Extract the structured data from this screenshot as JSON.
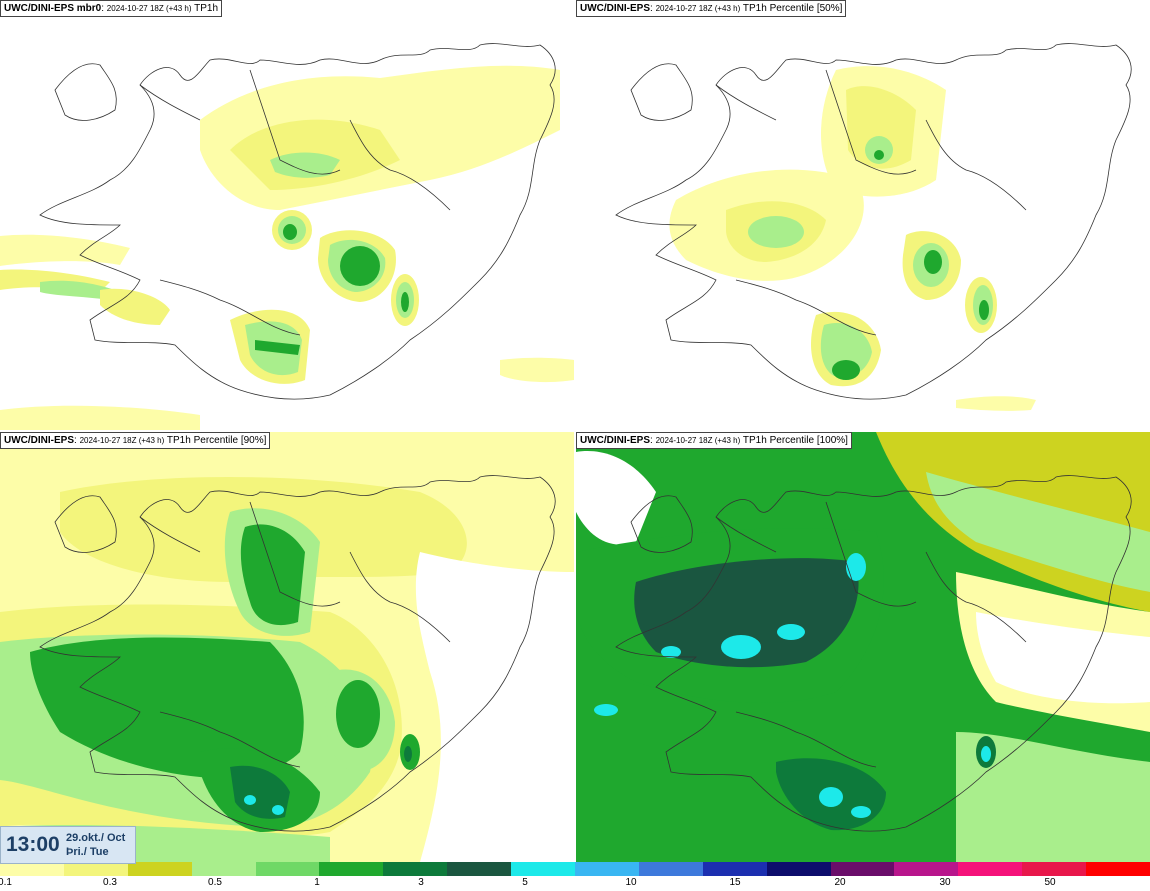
{
  "panels": [
    {
      "id": "tl",
      "prefix": "UWC/DINI-EPS mbr0",
      "run": "2024-10-27 18Z (+43 h)",
      "product": "TP1h"
    },
    {
      "id": "tr",
      "prefix": "UWC/DINI-EPS",
      "run": "2024-10-27 18Z (+43 h)",
      "product": "TP1h Percentile [50%]"
    },
    {
      "id": "bl",
      "prefix": "UWC/DINI-EPS",
      "run": "2024-10-27 18Z (+43 h)",
      "product": "TP1h Percentile [90%]"
    },
    {
      "id": "br",
      "prefix": "UWC/DINI-EPS",
      "run": "2024-10-27 18Z (+43 h)",
      "product": "TP1h Percentile [100%]"
    }
  ],
  "timestamp": {
    "time": "13:00",
    "date_line1": "29.okt./ Oct",
    "date_line2": "Þri./ Tue"
  },
  "colorbar": {
    "colors": [
      "#fdfda8",
      "#f3f57c",
      "#cdd320",
      "#a9ee8c",
      "#6fd866",
      "#1fa82e",
      "#0d7a3b",
      "#1a5640",
      "#1de9e9",
      "#39b6f2",
      "#3d79dc",
      "#1c2fb0",
      "#0d0d6c",
      "#6a0d6a",
      "#b8158c",
      "#f5127a",
      "#e8174b",
      "#ff0000"
    ],
    "tick_labels": [
      "0.1",
      "0.3",
      "0.5",
      "1",
      "3",
      "5",
      "10",
      "15",
      "20",
      "30",
      "50"
    ]
  }
}
